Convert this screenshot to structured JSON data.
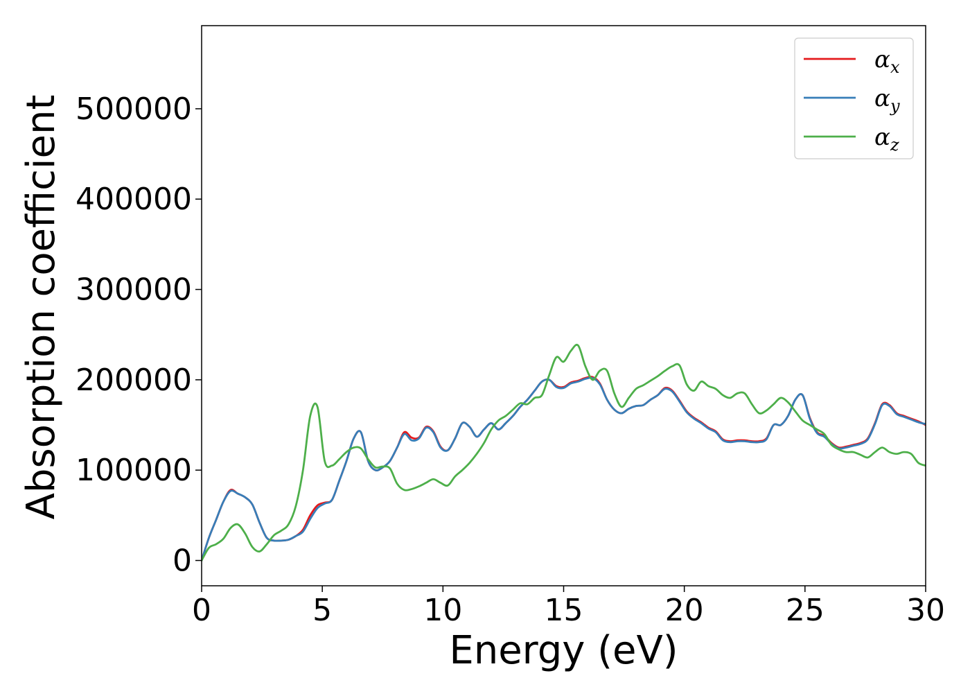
{
  "chart_data": {
    "type": "line",
    "xlabel": "Energy (eV)",
    "ylabel": "Absorption coefficient",
    "xlim": [
      0,
      30
    ],
    "ylim": [
      -28000,
      592000
    ],
    "xticks": [
      0,
      5,
      10,
      15,
      20,
      25,
      30
    ],
    "yticks": [
      0,
      100000,
      200000,
      300000,
      400000,
      500000
    ],
    "grid": false,
    "legend_position": "top-right",
    "series": [
      {
        "name": "x",
        "legend_symbol": "α",
        "color": "#e41a1c",
        "x": [
          0,
          0.3,
          0.6,
          0.9,
          1.2,
          1.5,
          1.8,
          2.1,
          2.4,
          2.7,
          3.0,
          3.3,
          3.6,
          3.9,
          4.2,
          4.5,
          4.8,
          5.1,
          5.4,
          5.7,
          6.0,
          6.3,
          6.6,
          6.9,
          7.2,
          7.5,
          7.8,
          8.1,
          8.4,
          8.7,
          9.0,
          9.3,
          9.6,
          9.9,
          10.2,
          10.5,
          10.8,
          11.1,
          11.4,
          11.7,
          12.0,
          12.3,
          12.6,
          12.9,
          13.2,
          13.5,
          13.8,
          14.1,
          14.4,
          14.7,
          15.0,
          15.3,
          15.6,
          15.9,
          16.2,
          16.5,
          16.8,
          17.1,
          17.4,
          17.7,
          18.0,
          18.3,
          18.6,
          18.9,
          19.2,
          19.5,
          19.8,
          20.1,
          20.4,
          20.7,
          21.0,
          21.3,
          21.6,
          21.9,
          22.2,
          22.5,
          22.8,
          23.1,
          23.4,
          23.7,
          24.0,
          24.3,
          24.6,
          24.9,
          25.2,
          25.5,
          25.8,
          26.1,
          26.4,
          26.7,
          27.0,
          27.3,
          27.6,
          27.9,
          28.2,
          28.5,
          28.8,
          29.1,
          29.4,
          29.7,
          30.0
        ],
        "y": [
          0,
          25000,
          45000,
          65000,
          78000,
          74000,
          70000,
          62000,
          42000,
          25000,
          22000,
          22000,
          23000,
          27000,
          34000,
          50000,
          61000,
          64000,
          67000,
          88000,
          110000,
          135000,
          142000,
          110000,
          100000,
          103000,
          110000,
          125000,
          142000,
          136000,
          136000,
          148000,
          143000,
          126000,
          122000,
          135000,
          152000,
          148000,
          137000,
          145000,
          152000,
          145000,
          152000,
          160000,
          170000,
          178000,
          188000,
          198000,
          200000,
          193000,
          192000,
          197000,
          199000,
          202000,
          203000,
          196000,
          178000,
          167000,
          163000,
          168000,
          171000,
          172000,
          178000,
          183000,
          191000,
          188000,
          177000,
          165000,
          158000,
          153000,
          147000,
          143000,
          134000,
          132000,
          133000,
          133000,
          132000,
          132000,
          135000,
          150000,
          150000,
          160000,
          178000,
          183000,
          158000,
          142000,
          138000,
          130000,
          125000,
          126000,
          128000,
          130000,
          135000,
          152000,
          173000,
          172000,
          163000,
          160000,
          157000,
          154000,
          150000
        ]
      },
      {
        "name": "y",
        "legend_symbol": "α",
        "color": "#377eb8",
        "x": [
          0,
          0.3,
          0.6,
          0.9,
          1.2,
          1.5,
          1.8,
          2.1,
          2.4,
          2.7,
          3.0,
          3.3,
          3.6,
          3.9,
          4.2,
          4.5,
          4.8,
          5.1,
          5.4,
          5.7,
          6.0,
          6.3,
          6.6,
          6.9,
          7.2,
          7.5,
          7.8,
          8.1,
          8.4,
          8.7,
          9.0,
          9.3,
          9.6,
          9.9,
          10.2,
          10.5,
          10.8,
          11.1,
          11.4,
          11.7,
          12.0,
          12.3,
          12.6,
          12.9,
          13.2,
          13.5,
          13.8,
          14.1,
          14.4,
          14.7,
          15.0,
          15.3,
          15.6,
          15.9,
          16.2,
          16.5,
          16.8,
          17.1,
          17.4,
          17.7,
          18.0,
          18.3,
          18.6,
          18.9,
          19.2,
          19.5,
          19.8,
          20.1,
          20.4,
          20.7,
          21.0,
          21.3,
          21.6,
          21.9,
          22.2,
          22.5,
          22.8,
          23.1,
          23.4,
          23.7,
          24.0,
          24.3,
          24.6,
          24.9,
          25.2,
          25.5,
          25.8,
          26.1,
          26.4,
          26.7,
          27.0,
          27.3,
          27.6,
          27.9,
          28.2,
          28.5,
          28.8,
          29.1,
          29.4,
          29.7,
          30.0
        ],
        "y": [
          0,
          25000,
          45000,
          65000,
          77000,
          74000,
          70000,
          62000,
          42000,
          25000,
          22000,
          22000,
          23000,
          27000,
          32000,
          46000,
          58000,
          63000,
          67000,
          88000,
          110000,
          135000,
          142000,
          110000,
          100000,
          103000,
          110000,
          125000,
          140000,
          133000,
          135000,
          147000,
          142000,
          125000,
          122000,
          135000,
          152000,
          148000,
          137000,
          145000,
          152000,
          145000,
          152000,
          160000,
          170000,
          178000,
          188000,
          198000,
          200000,
          192000,
          191000,
          196000,
          198000,
          201000,
          202000,
          195000,
          178000,
          167000,
          163000,
          168000,
          171000,
          172000,
          178000,
          183000,
          190000,
          187000,
          176000,
          164000,
          157000,
          152000,
          146000,
          142000,
          133000,
          131000,
          132000,
          132000,
          131000,
          131000,
          134000,
          150000,
          150000,
          160000,
          178000,
          183000,
          157000,
          141000,
          137000,
          129000,
          124000,
          125000,
          127000,
          129000,
          134000,
          151000,
          172000,
          171000,
          162000,
          159000,
          156000,
          153000,
          151000
        ]
      },
      {
        "name": "z",
        "legend_symbol": "α",
        "color": "#4daf4a",
        "x": [
          0,
          0.3,
          0.6,
          0.9,
          1.2,
          1.5,
          1.8,
          2.1,
          2.4,
          2.7,
          3.0,
          3.3,
          3.6,
          3.9,
          4.2,
          4.5,
          4.8,
          5.1,
          5.4,
          5.7,
          6.0,
          6.3,
          6.6,
          6.9,
          7.2,
          7.5,
          7.8,
          8.1,
          8.4,
          8.7,
          9.0,
          9.3,
          9.6,
          9.9,
          10.2,
          10.5,
          10.8,
          11.1,
          11.4,
          11.7,
          12.0,
          12.3,
          12.6,
          12.9,
          13.2,
          13.5,
          13.8,
          14.1,
          14.4,
          14.7,
          15.0,
          15.3,
          15.6,
          15.9,
          16.2,
          16.5,
          16.8,
          17.1,
          17.4,
          17.7,
          18.0,
          18.3,
          18.6,
          18.9,
          19.2,
          19.5,
          19.8,
          20.1,
          20.4,
          20.7,
          21.0,
          21.3,
          21.6,
          21.9,
          22.2,
          22.5,
          22.8,
          23.1,
          23.4,
          23.7,
          24.0,
          24.3,
          24.6,
          24.9,
          25.2,
          25.5,
          25.8,
          26.1,
          26.4,
          26.7,
          27.0,
          27.3,
          27.6,
          27.9,
          28.2,
          28.5,
          28.8,
          29.1,
          29.4,
          29.7,
          30.0
        ],
        "y": [
          0,
          14000,
          18000,
          24000,
          36000,
          40000,
          30000,
          15000,
          10000,
          18000,
          28000,
          33000,
          40000,
          60000,
          100000,
          160000,
          170000,
          110000,
          105000,
          112000,
          120000,
          125000,
          124000,
          112000,
          103000,
          104000,
          102000,
          85000,
          78000,
          79000,
          82000,
          86000,
          90000,
          86000,
          83000,
          93000,
          100000,
          108000,
          118000,
          130000,
          145000,
          155000,
          160000,
          167000,
          174000,
          173000,
          180000,
          183000,
          205000,
          225000,
          220000,
          232000,
          238000,
          215000,
          200000,
          210000,
          210000,
          185000,
          170000,
          180000,
          190000,
          194000,
          199000,
          204000,
          210000,
          215000,
          216000,
          195000,
          188000,
          198000,
          193000,
          190000,
          183000,
          180000,
          185000,
          185000,
          173000,
          163000,
          166000,
          173000,
          180000,
          175000,
          165000,
          155000,
          150000,
          145000,
          140000,
          128000,
          123000,
          120000,
          120000,
          117000,
          114000,
          120000,
          125000,
          120000,
          118000,
          120000,
          118000,
          108000,
          105000
        ]
      }
    ]
  }
}
